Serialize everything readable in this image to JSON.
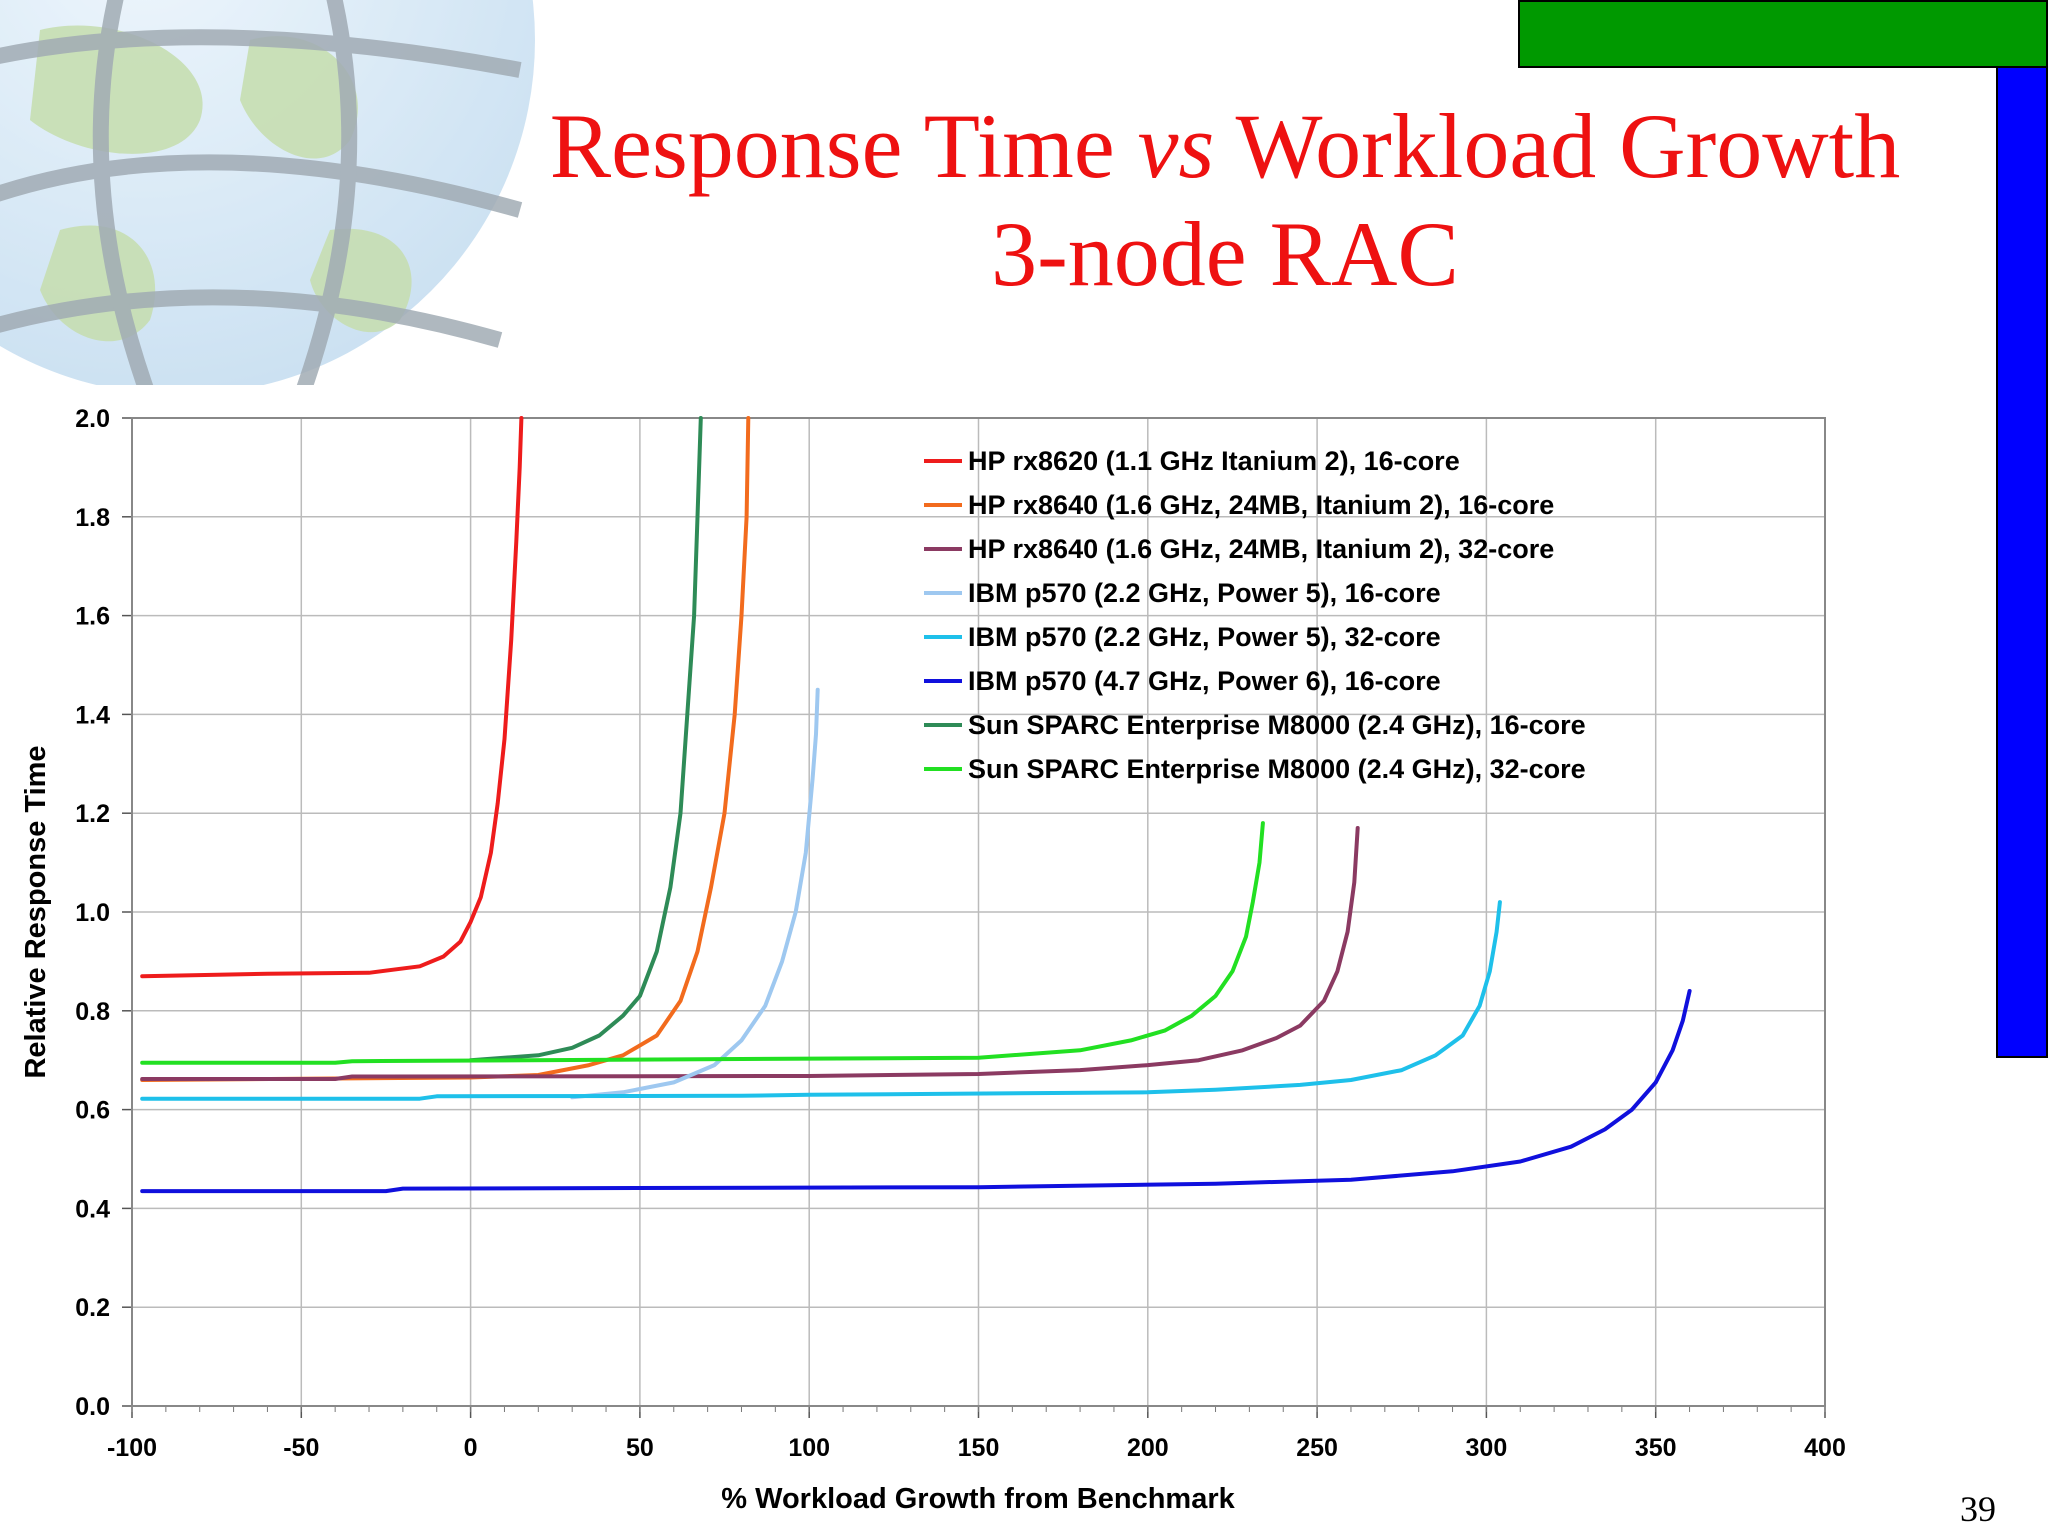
{
  "slide": {
    "title_line1_a": "Response Time ",
    "title_line1_vs": "vs",
    "title_line1_b": " Workload Growth",
    "title_line2": "3-node RAC",
    "slide_number": "39",
    "colors": {
      "title": "#ee1111",
      "green_bar": "#009900",
      "blue_bar": "#0000ff"
    }
  },
  "chart_data": {
    "type": "line",
    "title": "",
    "xlabel": "% Workload Growth from Benchmark",
    "ylabel": "Relative Response Time",
    "xlim": [
      -100,
      400
    ],
    "ylim": [
      0,
      2.0
    ],
    "x_ticks": [
      "-100",
      "-50",
      "0",
      "50",
      "100",
      "150",
      "200",
      "250",
      "300",
      "350",
      "400"
    ],
    "y_ticks": [
      "0.0",
      "0.2",
      "0.4",
      "0.6",
      "0.8",
      "1.0",
      "1.2",
      "1.4",
      "1.6",
      "1.8",
      "2.0"
    ],
    "grid": true,
    "legend_position": "top-right",
    "series": [
      {
        "name": "HP rx8620 (1.1 GHz Itanium 2), 16-core",
        "color": "#ee1c1c",
        "points": [
          [
            -97,
            0.87
          ],
          [
            -60,
            0.875
          ],
          [
            -30,
            0.877
          ],
          [
            -15,
            0.89
          ],
          [
            -8,
            0.91
          ],
          [
            -3,
            0.94
          ],
          [
            0,
            0.98
          ],
          [
            3,
            1.03
          ],
          [
            6,
            1.12
          ],
          [
            8,
            1.22
          ],
          [
            10,
            1.35
          ],
          [
            12,
            1.55
          ],
          [
            13.5,
            1.75
          ],
          [
            14.5,
            1.9
          ],
          [
            15,
            2.0
          ]
        ]
      },
      {
        "name": "HP rx8640 (1.6 GHz, 24MB, Itanium 2), 16-core",
        "color": "#f26b1d",
        "points": [
          [
            -97,
            0.66
          ],
          [
            0,
            0.665
          ],
          [
            20,
            0.67
          ],
          [
            35,
            0.69
          ],
          [
            45,
            0.71
          ],
          [
            55,
            0.75
          ],
          [
            62,
            0.82
          ],
          [
            67,
            0.92
          ],
          [
            71,
            1.05
          ],
          [
            75,
            1.2
          ],
          [
            78,
            1.4
          ],
          [
            80,
            1.6
          ],
          [
            81.5,
            1.8
          ],
          [
            82,
            2.0
          ]
        ]
      },
      {
        "name": "HP rx8640 (1.6 GHz, 24MB, Itanium 2), 32-core",
        "color": "#8b3a62",
        "points": [
          [
            -97,
            0.662
          ],
          [
            -40,
            0.662
          ],
          [
            -35,
            0.667
          ],
          [
            100,
            0.668
          ],
          [
            150,
            0.672
          ],
          [
            180,
            0.68
          ],
          [
            200,
            0.69
          ],
          [
            215,
            0.7
          ],
          [
            228,
            0.72
          ],
          [
            238,
            0.745
          ],
          [
            245,
            0.77
          ],
          [
            252,
            0.82
          ],
          [
            256,
            0.88
          ],
          [
            259,
            0.96
          ],
          [
            261,
            1.06
          ],
          [
            262,
            1.17
          ]
        ]
      },
      {
        "name": "IBM p570 (2.2 GHz, Power 5), 16-core",
        "color": "#9ec8f0",
        "points": [
          [
            30,
            0.625
          ],
          [
            45,
            0.635
          ],
          [
            60,
            0.655
          ],
          [
            72,
            0.69
          ],
          [
            80,
            0.74
          ],
          [
            87,
            0.81
          ],
          [
            92,
            0.9
          ],
          [
            96,
            1.0
          ],
          [
            99,
            1.12
          ],
          [
            101,
            1.27
          ],
          [
            102,
            1.36
          ],
          [
            102.5,
            1.45
          ]
        ]
      },
      {
        "name": "IBM p570 (2.2 GHz, Power 5), 32-core",
        "color": "#1ec0ea",
        "points": [
          [
            -97,
            0.622
          ],
          [
            -15,
            0.622
          ],
          [
            -10,
            0.627
          ],
          [
            80,
            0.628
          ],
          [
            100,
            0.63
          ],
          [
            200,
            0.635
          ],
          [
            220,
            0.64
          ],
          [
            245,
            0.65
          ],
          [
            260,
            0.66
          ],
          [
            275,
            0.68
          ],
          [
            285,
            0.71
          ],
          [
            293,
            0.75
          ],
          [
            298,
            0.81
          ],
          [
            301,
            0.88
          ],
          [
            303,
            0.96
          ],
          [
            304,
            1.02
          ]
        ]
      },
      {
        "name": "IBM p570 (4.7 GHz, Power 6), 16-core",
        "color": "#1010dd",
        "points": [
          [
            -97,
            0.435
          ],
          [
            -25,
            0.435
          ],
          [
            -20,
            0.44
          ],
          [
            150,
            0.443
          ],
          [
            220,
            0.45
          ],
          [
            260,
            0.458
          ],
          [
            290,
            0.475
          ],
          [
            310,
            0.495
          ],
          [
            325,
            0.525
          ],
          [
            335,
            0.56
          ],
          [
            343,
            0.6
          ],
          [
            350,
            0.655
          ],
          [
            355,
            0.72
          ],
          [
            358,
            0.78
          ],
          [
            360,
            0.84
          ]
        ]
      },
      {
        "name": "Sun SPARC Enterprise M8000 (2.4 GHz), 16-core",
        "color": "#2e8b57",
        "points": [
          [
            0,
            0.7
          ],
          [
            20,
            0.71
          ],
          [
            30,
            0.725
          ],
          [
            38,
            0.75
          ],
          [
            45,
            0.79
          ],
          [
            50,
            0.83
          ],
          [
            55,
            0.92
          ],
          [
            59,
            1.05
          ],
          [
            62,
            1.2
          ],
          [
            64,
            1.4
          ],
          [
            66,
            1.6
          ],
          [
            67,
            1.8
          ],
          [
            68,
            2.0
          ]
        ]
      },
      {
        "name": "Sun SPARC Enterprise M8000 (2.4 GHz), 32-core",
        "color": "#22e022",
        "points": [
          [
            -97,
            0.695
          ],
          [
            -40,
            0.695
          ],
          [
            -35,
            0.698
          ],
          [
            150,
            0.705
          ],
          [
            180,
            0.72
          ],
          [
            195,
            0.74
          ],
          [
            205,
            0.76
          ],
          [
            213,
            0.79
          ],
          [
            220,
            0.83
          ],
          [
            225,
            0.88
          ],
          [
            229,
            0.95
          ],
          [
            231,
            1.02
          ],
          [
            233,
            1.1
          ],
          [
            234,
            1.18
          ]
        ]
      }
    ]
  }
}
